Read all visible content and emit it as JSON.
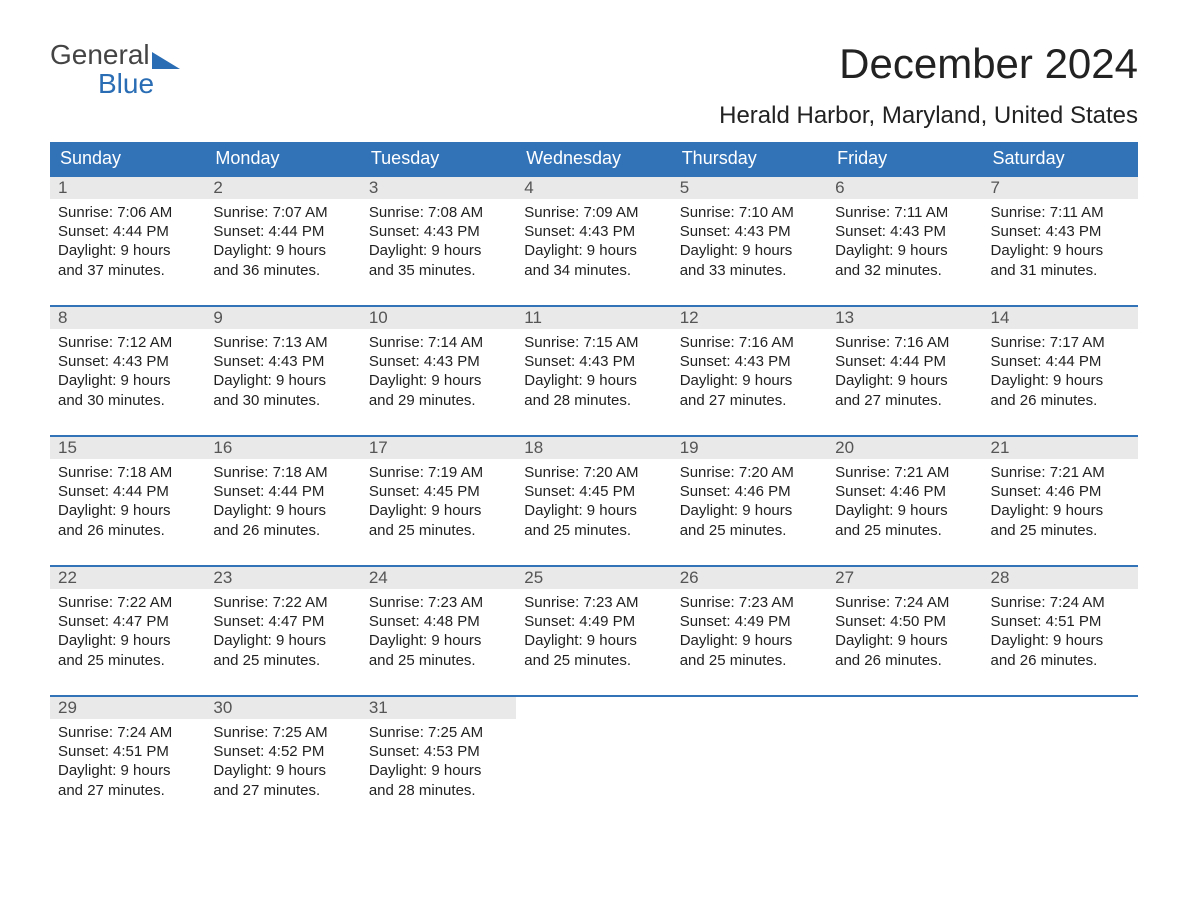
{
  "logo": {
    "text_top": "General",
    "text_bottom": "Blue"
  },
  "title": "December 2024",
  "location": "Herald Harbor, Maryland, United States",
  "colors": {
    "header_bg": "#3273b8",
    "header_text": "#ffffff",
    "week_border": "#3273b8",
    "daynum_bg": "#e9e9e9",
    "daynum_text": "#555555",
    "body_text": "#222222",
    "logo_gray": "#444444",
    "logo_blue": "#2a6db4",
    "page_bg": "#ffffff"
  },
  "typography": {
    "title_fontsize": 42,
    "location_fontsize": 24,
    "dayheader_fontsize": 18,
    "daynum_fontsize": 17,
    "body_fontsize": 15,
    "logo_fontsize": 28
  },
  "day_headers": [
    "Sunday",
    "Monday",
    "Tuesday",
    "Wednesday",
    "Thursday",
    "Friday",
    "Saturday"
  ],
  "weeks": [
    [
      {
        "num": "1",
        "sunrise": "Sunrise: 7:06 AM",
        "sunset": "Sunset: 4:44 PM",
        "dl1": "Daylight: 9 hours",
        "dl2": "and 37 minutes."
      },
      {
        "num": "2",
        "sunrise": "Sunrise: 7:07 AM",
        "sunset": "Sunset: 4:44 PM",
        "dl1": "Daylight: 9 hours",
        "dl2": "and 36 minutes."
      },
      {
        "num": "3",
        "sunrise": "Sunrise: 7:08 AM",
        "sunset": "Sunset: 4:43 PM",
        "dl1": "Daylight: 9 hours",
        "dl2": "and 35 minutes."
      },
      {
        "num": "4",
        "sunrise": "Sunrise: 7:09 AM",
        "sunset": "Sunset: 4:43 PM",
        "dl1": "Daylight: 9 hours",
        "dl2": "and 34 minutes."
      },
      {
        "num": "5",
        "sunrise": "Sunrise: 7:10 AM",
        "sunset": "Sunset: 4:43 PM",
        "dl1": "Daylight: 9 hours",
        "dl2": "and 33 minutes."
      },
      {
        "num": "6",
        "sunrise": "Sunrise: 7:11 AM",
        "sunset": "Sunset: 4:43 PM",
        "dl1": "Daylight: 9 hours",
        "dl2": "and 32 minutes."
      },
      {
        "num": "7",
        "sunrise": "Sunrise: 7:11 AM",
        "sunset": "Sunset: 4:43 PM",
        "dl1": "Daylight: 9 hours",
        "dl2": "and 31 minutes."
      }
    ],
    [
      {
        "num": "8",
        "sunrise": "Sunrise: 7:12 AM",
        "sunset": "Sunset: 4:43 PM",
        "dl1": "Daylight: 9 hours",
        "dl2": "and 30 minutes."
      },
      {
        "num": "9",
        "sunrise": "Sunrise: 7:13 AM",
        "sunset": "Sunset: 4:43 PM",
        "dl1": "Daylight: 9 hours",
        "dl2": "and 30 minutes."
      },
      {
        "num": "10",
        "sunrise": "Sunrise: 7:14 AM",
        "sunset": "Sunset: 4:43 PM",
        "dl1": "Daylight: 9 hours",
        "dl2": "and 29 minutes."
      },
      {
        "num": "11",
        "sunrise": "Sunrise: 7:15 AM",
        "sunset": "Sunset: 4:43 PM",
        "dl1": "Daylight: 9 hours",
        "dl2": "and 28 minutes."
      },
      {
        "num": "12",
        "sunrise": "Sunrise: 7:16 AM",
        "sunset": "Sunset: 4:43 PM",
        "dl1": "Daylight: 9 hours",
        "dl2": "and 27 minutes."
      },
      {
        "num": "13",
        "sunrise": "Sunrise: 7:16 AM",
        "sunset": "Sunset: 4:44 PM",
        "dl1": "Daylight: 9 hours",
        "dl2": "and 27 minutes."
      },
      {
        "num": "14",
        "sunrise": "Sunrise: 7:17 AM",
        "sunset": "Sunset: 4:44 PM",
        "dl1": "Daylight: 9 hours",
        "dl2": "and 26 minutes."
      }
    ],
    [
      {
        "num": "15",
        "sunrise": "Sunrise: 7:18 AM",
        "sunset": "Sunset: 4:44 PM",
        "dl1": "Daylight: 9 hours",
        "dl2": "and 26 minutes."
      },
      {
        "num": "16",
        "sunrise": "Sunrise: 7:18 AM",
        "sunset": "Sunset: 4:44 PM",
        "dl1": "Daylight: 9 hours",
        "dl2": "and 26 minutes."
      },
      {
        "num": "17",
        "sunrise": "Sunrise: 7:19 AM",
        "sunset": "Sunset: 4:45 PM",
        "dl1": "Daylight: 9 hours",
        "dl2": "and 25 minutes."
      },
      {
        "num": "18",
        "sunrise": "Sunrise: 7:20 AM",
        "sunset": "Sunset: 4:45 PM",
        "dl1": "Daylight: 9 hours",
        "dl2": "and 25 minutes."
      },
      {
        "num": "19",
        "sunrise": "Sunrise: 7:20 AM",
        "sunset": "Sunset: 4:46 PM",
        "dl1": "Daylight: 9 hours",
        "dl2": "and 25 minutes."
      },
      {
        "num": "20",
        "sunrise": "Sunrise: 7:21 AM",
        "sunset": "Sunset: 4:46 PM",
        "dl1": "Daylight: 9 hours",
        "dl2": "and 25 minutes."
      },
      {
        "num": "21",
        "sunrise": "Sunrise: 7:21 AM",
        "sunset": "Sunset: 4:46 PM",
        "dl1": "Daylight: 9 hours",
        "dl2": "and 25 minutes."
      }
    ],
    [
      {
        "num": "22",
        "sunrise": "Sunrise: 7:22 AM",
        "sunset": "Sunset: 4:47 PM",
        "dl1": "Daylight: 9 hours",
        "dl2": "and 25 minutes."
      },
      {
        "num": "23",
        "sunrise": "Sunrise: 7:22 AM",
        "sunset": "Sunset: 4:47 PM",
        "dl1": "Daylight: 9 hours",
        "dl2": "and 25 minutes."
      },
      {
        "num": "24",
        "sunrise": "Sunrise: 7:23 AM",
        "sunset": "Sunset: 4:48 PM",
        "dl1": "Daylight: 9 hours",
        "dl2": "and 25 minutes."
      },
      {
        "num": "25",
        "sunrise": "Sunrise: 7:23 AM",
        "sunset": "Sunset: 4:49 PM",
        "dl1": "Daylight: 9 hours",
        "dl2": "and 25 minutes."
      },
      {
        "num": "26",
        "sunrise": "Sunrise: 7:23 AM",
        "sunset": "Sunset: 4:49 PM",
        "dl1": "Daylight: 9 hours",
        "dl2": "and 25 minutes."
      },
      {
        "num": "27",
        "sunrise": "Sunrise: 7:24 AM",
        "sunset": "Sunset: 4:50 PM",
        "dl1": "Daylight: 9 hours",
        "dl2": "and 26 minutes."
      },
      {
        "num": "28",
        "sunrise": "Sunrise: 7:24 AM",
        "sunset": "Sunset: 4:51 PM",
        "dl1": "Daylight: 9 hours",
        "dl2": "and 26 minutes."
      }
    ],
    [
      {
        "num": "29",
        "sunrise": "Sunrise: 7:24 AM",
        "sunset": "Sunset: 4:51 PM",
        "dl1": "Daylight: 9 hours",
        "dl2": "and 27 minutes."
      },
      {
        "num": "30",
        "sunrise": "Sunrise: 7:25 AM",
        "sunset": "Sunset: 4:52 PM",
        "dl1": "Daylight: 9 hours",
        "dl2": "and 27 minutes."
      },
      {
        "num": "31",
        "sunrise": "Sunrise: 7:25 AM",
        "sunset": "Sunset: 4:53 PM",
        "dl1": "Daylight: 9 hours",
        "dl2": "and 28 minutes."
      },
      {
        "empty": true
      },
      {
        "empty": true
      },
      {
        "empty": true
      },
      {
        "empty": true
      }
    ]
  ]
}
